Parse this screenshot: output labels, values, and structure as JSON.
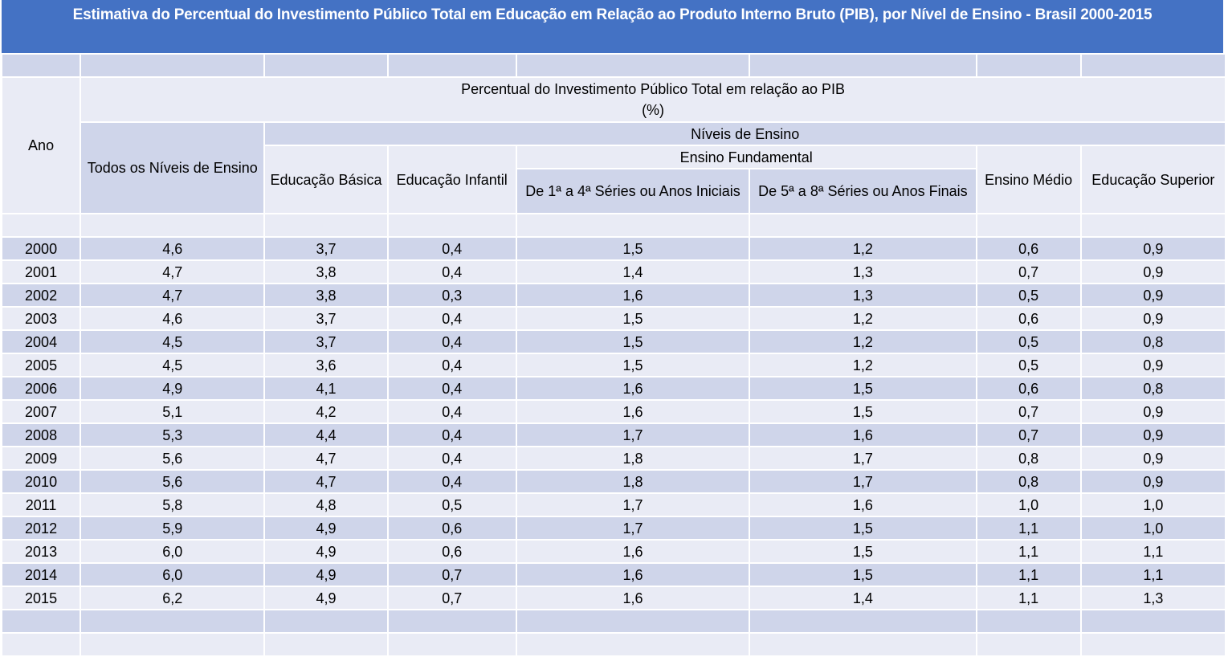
{
  "title": "Estimativa do Percentual do Investimento Público Total em Educação em Relação ao Produto Interno Bruto (PIB), por Nível de Ensino - Brasil 2000-2015",
  "header": {
    "year": "Ano",
    "group_line1": "Percentual do Investimento Público Total em relação ao PIB",
    "group_line2": "(%)",
    "levels": "Níveis de Ensino",
    "all_levels": "Todos os Níveis de Ensino",
    "basic": "Educação Básica",
    "infant": "Educação Infantil",
    "fundamental": "Ensino Fundamental",
    "fund_initial": "De 1ª a 4ª  Séries ou Anos Iniciais",
    "fund_final": "De 5ª a 8ª  Séries ou Anos Finais",
    "secondary": "Ensino Médio",
    "higher": "Educação Superior"
  },
  "table": {
    "rows": [
      [
        "2000",
        "4,6",
        "3,7",
        "0,4",
        "1,5",
        "1,2",
        "0,6",
        "0,9"
      ],
      [
        "2001",
        "4,7",
        "3,8",
        "0,4",
        "1,4",
        "1,3",
        "0,7",
        "0,9"
      ],
      [
        "2002",
        "4,7",
        "3,8",
        "0,3",
        "1,6",
        "1,3",
        "0,5",
        "0,9"
      ],
      [
        "2003",
        "4,6",
        "3,7",
        "0,4",
        "1,5",
        "1,2",
        "0,6",
        "0,9"
      ],
      [
        "2004",
        "4,5",
        "3,7",
        "0,4",
        "1,5",
        "1,2",
        "0,5",
        "0,8"
      ],
      [
        "2005",
        "4,5",
        "3,6",
        "0,4",
        "1,5",
        "1,2",
        "0,5",
        "0,9"
      ],
      [
        "2006",
        "4,9",
        "4,1",
        "0,4",
        "1,6",
        "1,5",
        "0,6",
        "0,8"
      ],
      [
        "2007",
        "5,1",
        "4,2",
        "0,4",
        "1,6",
        "1,5",
        "0,7",
        "0,9"
      ],
      [
        "2008",
        "5,3",
        "4,4",
        "0,4",
        "1,7",
        "1,6",
        "0,7",
        "0,9"
      ],
      [
        "2009",
        "5,6",
        "4,7",
        "0,4",
        "1,8",
        "1,7",
        "0,8",
        "0,9"
      ],
      [
        "2010",
        "5,6",
        "4,7",
        "0,4",
        "1,8",
        "1,7",
        "0,8",
        "0,9"
      ],
      [
        "2011",
        "5,8",
        "4,8",
        "0,5",
        "1,7",
        "1,6",
        "1,0",
        "1,0"
      ],
      [
        "2012",
        "5,9",
        "4,9",
        "0,6",
        "1,7",
        "1,5",
        "1,1",
        "1,0"
      ],
      [
        "2013",
        "6,0",
        "4,9",
        "0,6",
        "1,6",
        "1,5",
        "1,1",
        "1,1"
      ],
      [
        "2014",
        "6,0",
        "4,9",
        "0,7",
        "1,6",
        "1,5",
        "1,1",
        "1,1"
      ],
      [
        "2015",
        "6,2",
        "4,9",
        "0,7",
        "1,6",
        "1,4",
        "1,1",
        "1,3"
      ]
    ]
  }
}
